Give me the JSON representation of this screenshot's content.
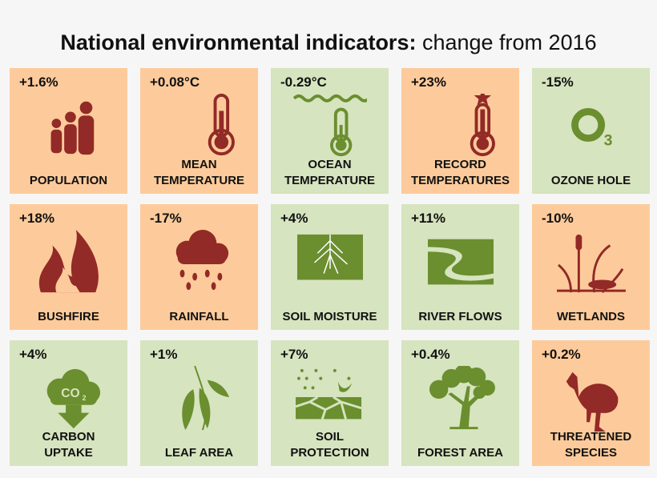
{
  "title": {
    "bold": "National environmental indicators:",
    "rest": "change from 2016"
  },
  "colors": {
    "warm_tile": "#fdcb9b",
    "cool_tile": "#d6e4bf",
    "warm_icon": "#922a27",
    "cool_icon": "#6b8e2f"
  },
  "tiles": [
    {
      "value": "+1.6%",
      "label1": "POPULATION",
      "label2": "",
      "tone": "warm",
      "icon": "people-icon"
    },
    {
      "value": "+0.08°C",
      "label1": "MEAN",
      "label2": "TEMPERATURE",
      "tone": "warm",
      "icon": "thermometer-icon"
    },
    {
      "value": "-0.29°C",
      "label1": "OCEAN",
      "label2": "TEMPERATURE",
      "tone": "cool",
      "icon": "ocean-thermometer-icon"
    },
    {
      "value": "+23%",
      "label1": "RECORD",
      "label2": "TEMPERATURES",
      "tone": "warm",
      "icon": "record-thermometer-icon"
    },
    {
      "value": "-15%",
      "label1": "OZONE HOLE",
      "label2": "",
      "tone": "cool",
      "icon": "ozone-icon"
    },
    {
      "value": "+18%",
      "label1": "BUSHFIRE",
      "label2": "",
      "tone": "warm",
      "icon": "fire-icon"
    },
    {
      "value": "-17%",
      "label1": "RAINFALL",
      "label2": "",
      "tone": "warm",
      "icon": "rain-cloud-icon"
    },
    {
      "value": "+4%",
      "label1": "SOIL MOISTURE",
      "label2": "",
      "tone": "cool",
      "icon": "soil-roots-icon"
    },
    {
      "value": "+11%",
      "label1": "RIVER FLOWS",
      "label2": "",
      "tone": "cool",
      "icon": "river-icon"
    },
    {
      "value": "-10%",
      "label1": "WETLANDS",
      "label2": "",
      "tone": "warm",
      "icon": "wetland-icon"
    },
    {
      "value": "+4%",
      "label1": "CARBON",
      "label2": "UPTAKE",
      "tone": "cool",
      "icon": "co2-icon"
    },
    {
      "value": "+1%",
      "label1": "LEAF AREA",
      "label2": "",
      "tone": "cool",
      "icon": "leaf-icon"
    },
    {
      "value": "+7%",
      "label1": "SOIL",
      "label2": "PROTECTION",
      "tone": "cool",
      "icon": "soil-protection-icon"
    },
    {
      "value": "+0.4%",
      "label1": "FOREST AREA",
      "label2": "",
      "tone": "cool",
      "icon": "tree-icon"
    },
    {
      "value": "+0.2%",
      "label1": "THREATENED",
      "label2": "SPECIES",
      "tone": "warm",
      "icon": "cassowary-icon"
    }
  ]
}
